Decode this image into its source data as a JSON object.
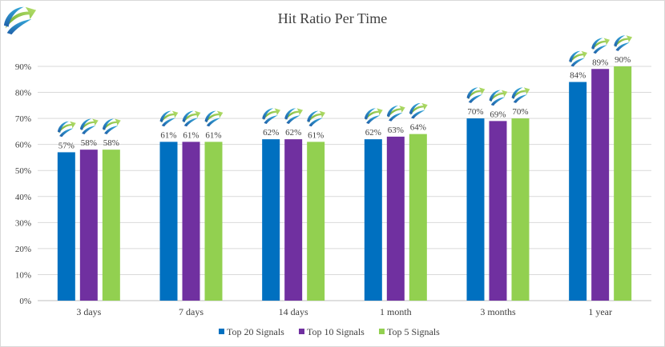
{
  "chart_data": {
    "type": "bar",
    "title": "Hit Ratio Per Time",
    "xlabel": "",
    "ylabel": "",
    "categories": [
      "3 days",
      "7 days",
      "14 days",
      "1 month",
      "3 months",
      "1 year"
    ],
    "series": [
      {
        "name": "Top 20 Signals",
        "color": "#0070C0",
        "values": [
          57,
          61,
          62,
          62,
          70,
          84
        ],
        "labels": [
          "57%",
          "61%",
          "62%",
          "62%",
          "70%",
          "84%"
        ]
      },
      {
        "name": "Top 10 Signals",
        "color": "#7030A0",
        "values": [
          58,
          61,
          62,
          63,
          69,
          89
        ],
        "labels": [
          "58%",
          "61%",
          "62%",
          "63%",
          "69%",
          "89%"
        ]
      },
      {
        "name": "Top 5 Signals",
        "color": "#92D050",
        "values": [
          58,
          61,
          61,
          64,
          70,
          90
        ],
        "labels": [
          "58%",
          "61%",
          "61%",
          "64%",
          "70%",
          "90%"
        ]
      }
    ],
    "ylim": [
      0,
      90
    ],
    "yticks": [
      "0%",
      "10%",
      "20%",
      "30%",
      "40%",
      "50%",
      "60%",
      "70%",
      "80%",
      "90%"
    ],
    "grid": true,
    "legend": "bottom",
    "decorations": {
      "icon": "logo-arrow-icon"
    }
  }
}
